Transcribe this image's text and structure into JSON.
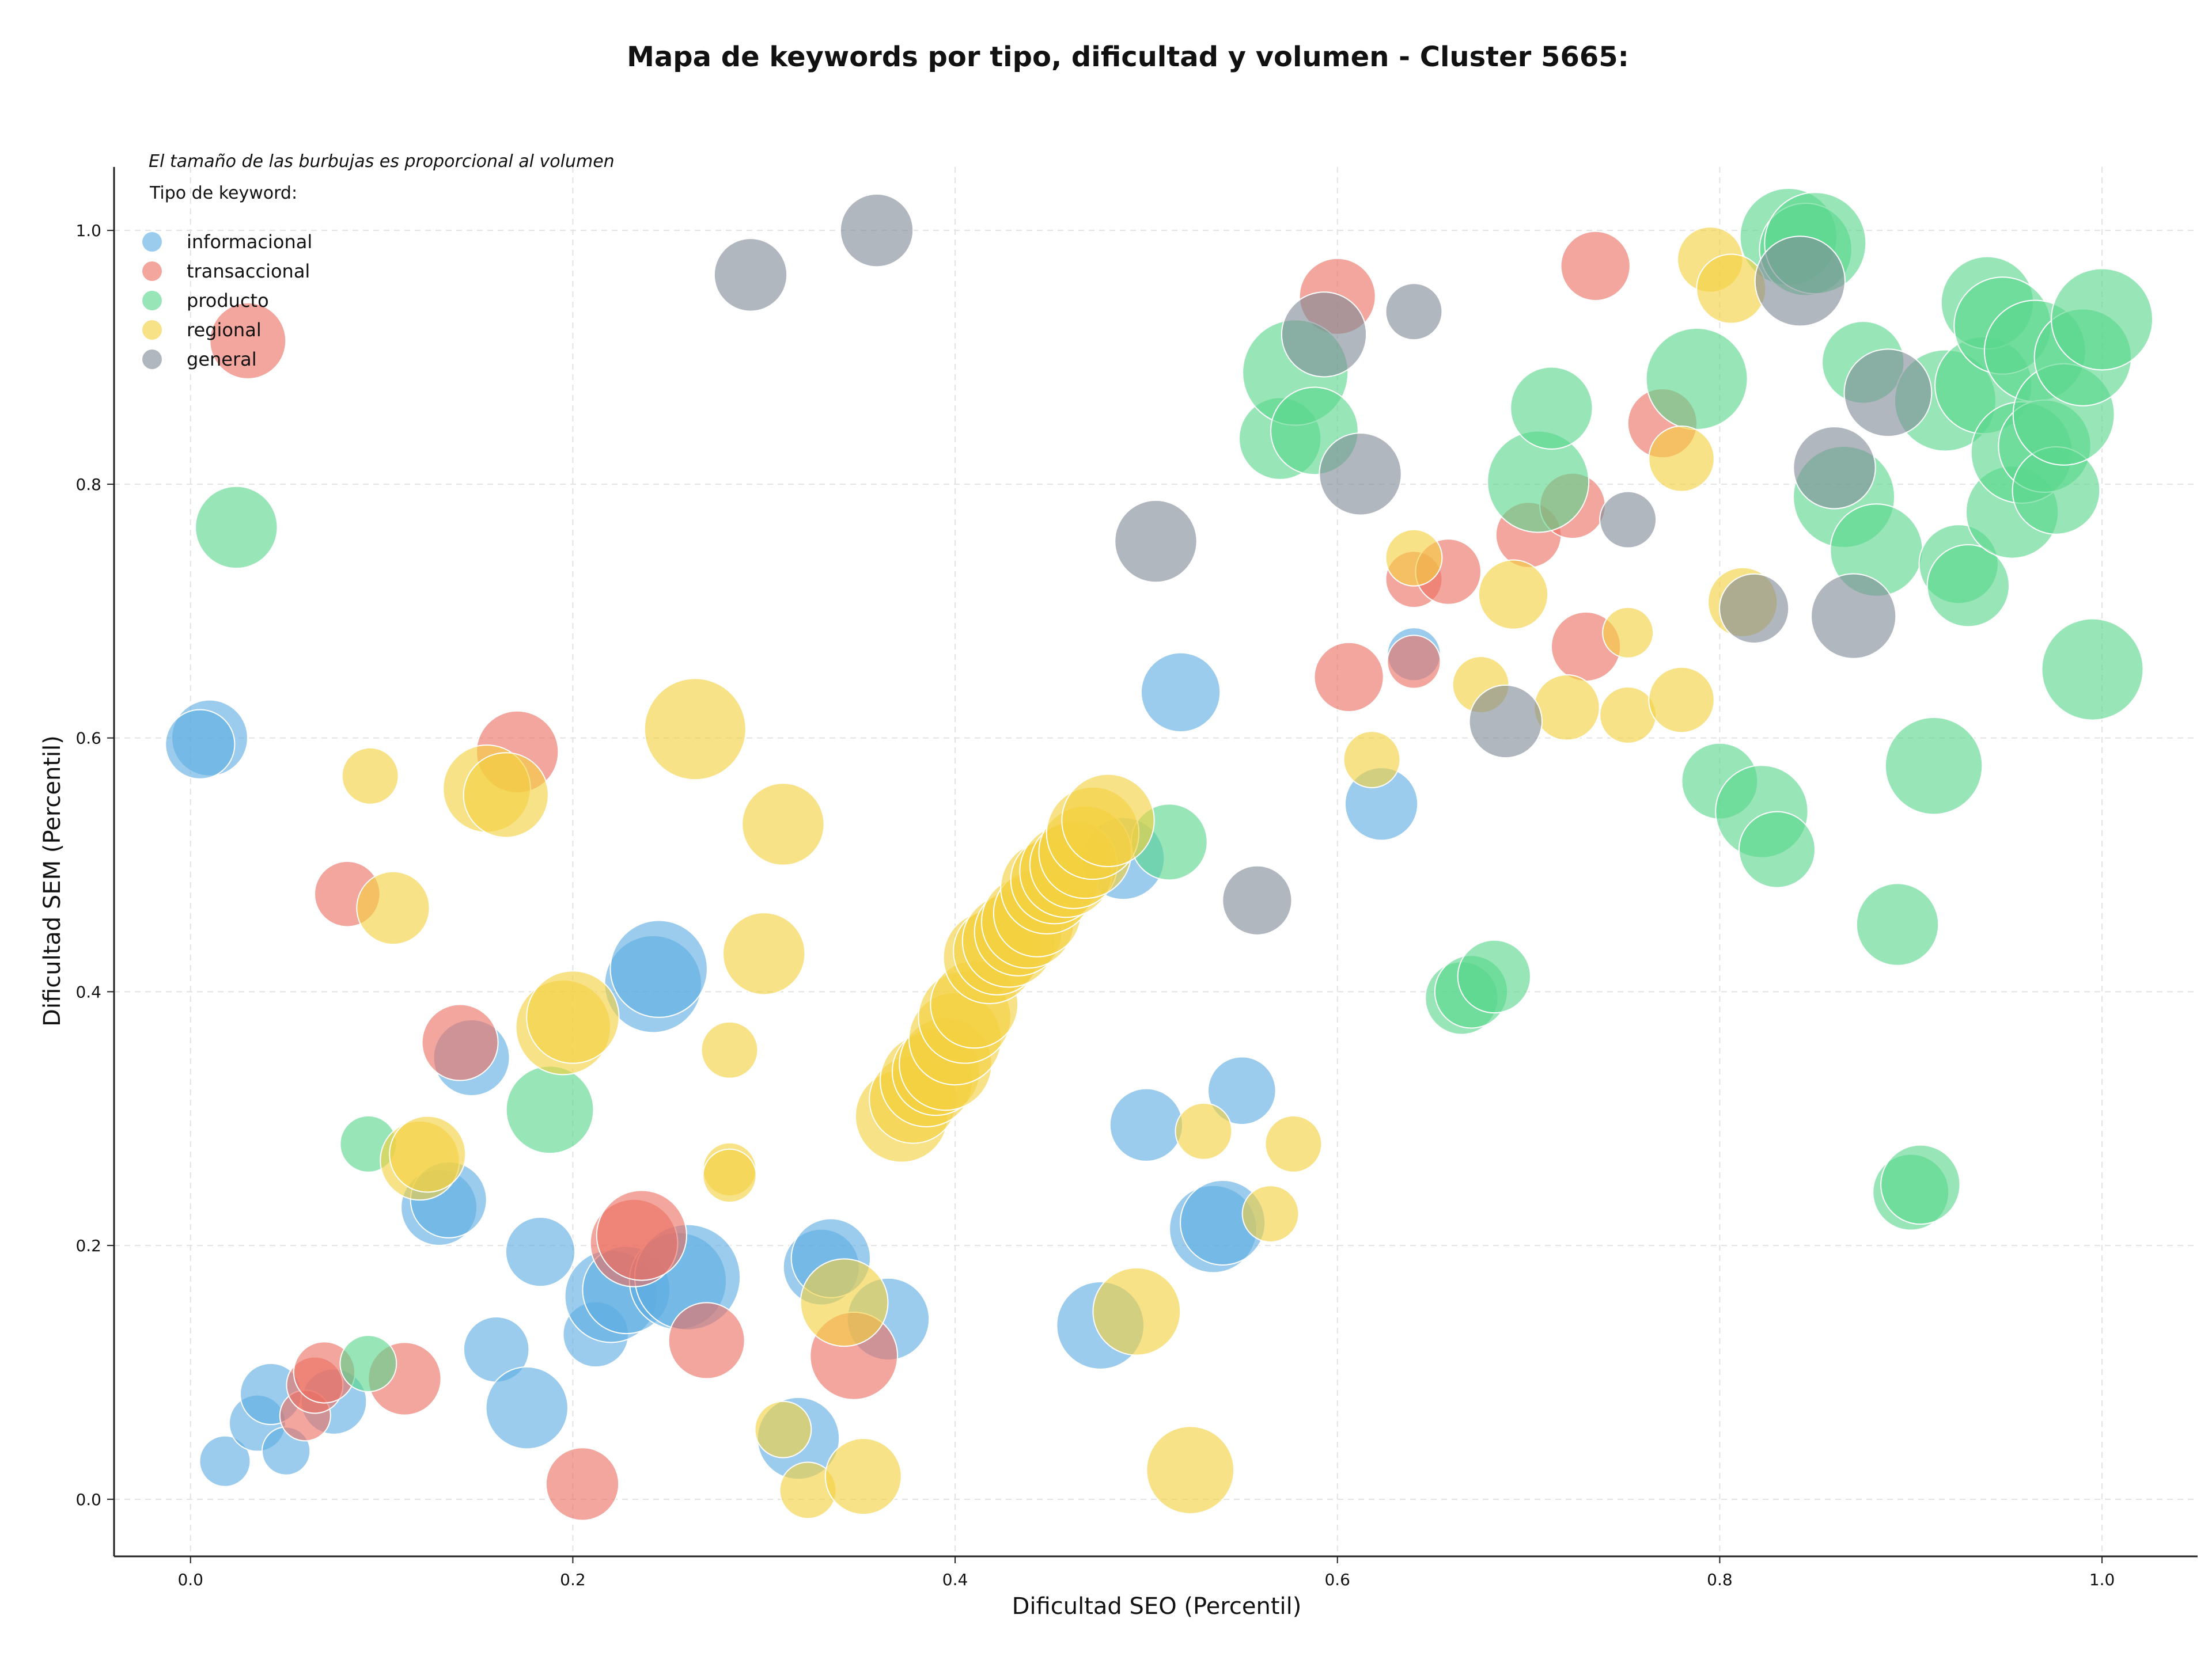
{
  "chart_data": {
    "type": "scatter",
    "title": "Mapa de keywords por tipo, dificultad y volumen - Cluster 5665:",
    "xlabel": "Dificultad SEO (Percentil)",
    "ylabel": "Dificultad SEM (Percentil)",
    "xlim": [
      -0.04,
      1.05
    ],
    "ylim": [
      -0.045,
      1.05
    ],
    "xticks": [
      "0.0",
      "0.2",
      "0.4",
      "0.6",
      "0.8",
      "1.0"
    ],
    "yticks": [
      "0.0",
      "0.2",
      "0.4",
      "0.6",
      "0.8",
      "1.0"
    ],
    "grid": true,
    "legend_placement": "upper-left",
    "legend_title": "Tipo de keyword:",
    "note": "El tamaño de las burbujas es proporcional al volumen",
    "series": [
      {
        "name": "informacional",
        "color": "#5DADE2",
        "points": [
          {
            "x": 0.01,
            "y": 0.6,
            "s": 4
          },
          {
            "x": 0.005,
            "y": 0.595,
            "s": 3
          },
          {
            "x": 0.018,
            "y": 0.03,
            "s": 1
          },
          {
            "x": 0.035,
            "y": 0.06,
            "s": 1.5
          },
          {
            "x": 0.042,
            "y": 0.083,
            "s": 2
          },
          {
            "x": 0.05,
            "y": 0.038,
            "s": 0.8
          },
          {
            "x": 0.075,
            "y": 0.077,
            "s": 2.5
          },
          {
            "x": 0.13,
            "y": 0.23,
            "s": 4
          },
          {
            "x": 0.135,
            "y": 0.236,
            "s": 4
          },
          {
            "x": 0.147,
            "y": 0.348,
            "s": 4
          },
          {
            "x": 0.16,
            "y": 0.118,
            "s": 2.5
          },
          {
            "x": 0.176,
            "y": 0.072,
            "s": 5
          },
          {
            "x": 0.183,
            "y": 0.195,
            "s": 3
          },
          {
            "x": 0.212,
            "y": 0.13,
            "s": 2.5
          },
          {
            "x": 0.22,
            "y": 0.16,
            "s": 7
          },
          {
            "x": 0.228,
            "y": 0.165,
            "s": 6
          },
          {
            "x": 0.242,
            "y": 0.406,
            "s": 8
          },
          {
            "x": 0.245,
            "y": 0.418,
            "s": 8
          },
          {
            "x": 0.255,
            "y": 0.172,
            "s": 8
          },
          {
            "x": 0.26,
            "y": 0.175,
            "s": 10
          },
          {
            "x": 0.318,
            "y": 0.048,
            "s": 5
          },
          {
            "x": 0.33,
            "y": 0.183,
            "s": 4
          },
          {
            "x": 0.335,
            "y": 0.19,
            "s": 4.5
          },
          {
            "x": 0.365,
            "y": 0.142,
            "s": 5
          },
          {
            "x": 0.476,
            "y": 0.137,
            "s": 6
          },
          {
            "x": 0.488,
            "y": 0.505,
            "s": 5
          },
          {
            "x": 0.5,
            "y": 0.295,
            "s": 3.5
          },
          {
            "x": 0.518,
            "y": 0.636,
            "s": 4.5
          },
          {
            "x": 0.535,
            "y": 0.213,
            "s": 6
          },
          {
            "x": 0.54,
            "y": 0.218,
            "s": 5.5
          },
          {
            "x": 0.55,
            "y": 0.322,
            "s": 2.8
          },
          {
            "x": 0.623,
            "y": 0.548,
            "s": 3.5
          },
          {
            "x": 0.64,
            "y": 0.666,
            "s": 1.2
          }
        ]
      },
      {
        "name": "transaccional",
        "color": "#EC7063",
        "points": [
          {
            "x": 0.03,
            "y": 0.913,
            "s": 4
          },
          {
            "x": 0.06,
            "y": 0.066,
            "s": 1
          },
          {
            "x": 0.065,
            "y": 0.09,
            "s": 1.5
          },
          {
            "x": 0.07,
            "y": 0.1,
            "s": 2
          },
          {
            "x": 0.082,
            "y": 0.477,
            "s": 2.5
          },
          {
            "x": 0.112,
            "y": 0.095,
            "s": 3.5
          },
          {
            "x": 0.141,
            "y": 0.36,
            "s": 4
          },
          {
            "x": 0.171,
            "y": 0.589,
            "s": 5
          },
          {
            "x": 0.205,
            "y": 0.012,
            "s": 3.5
          },
          {
            "x": 0.232,
            "y": 0.202,
            "s": 6
          },
          {
            "x": 0.236,
            "y": 0.208,
            "s": 6.5
          },
          {
            "x": 0.27,
            "y": 0.125,
            "s": 4
          },
          {
            "x": 0.347,
            "y": 0.113,
            "s": 6
          },
          {
            "x": 0.6,
            "y": 0.948,
            "s": 4
          },
          {
            "x": 0.606,
            "y": 0.648,
            "s": 3
          },
          {
            "x": 0.64,
            "y": 0.725,
            "s": 1.5
          },
          {
            "x": 0.64,
            "y": 0.66,
            "s": 1.2
          },
          {
            "x": 0.658,
            "y": 0.731,
            "s": 2.5
          },
          {
            "x": 0.7,
            "y": 0.76,
            "s": 2.5
          },
          {
            "x": 0.723,
            "y": 0.783,
            "s": 2.5
          },
          {
            "x": 0.73,
            "y": 0.672,
            "s": 3
          },
          {
            "x": 0.735,
            "y": 0.972,
            "s": 3
          },
          {
            "x": 0.77,
            "y": 0.848,
            "s": 3
          }
        ]
      },
      {
        "name": "producto",
        "color": "#58D68D",
        "points": [
          {
            "x": 0.024,
            "y": 0.766,
            "s": 5
          },
          {
            "x": 0.093,
            "y": 0.28,
            "s": 1.5
          },
          {
            "x": 0.093,
            "y": 0.107,
            "s": 1.5
          },
          {
            "x": 0.188,
            "y": 0.307,
            "s": 6
          },
          {
            "x": 0.512,
            "y": 0.518,
            "s": 4
          },
          {
            "x": 0.57,
            "y": 0.836,
            "s": 5
          },
          {
            "x": 0.578,
            "y": 0.888,
            "s": 10
          },
          {
            "x": 0.588,
            "y": 0.842,
            "s": 6
          },
          {
            "x": 0.665,
            "y": 0.395,
            "s": 3.5
          },
          {
            "x": 0.67,
            "y": 0.4,
            "s": 3.5
          },
          {
            "x": 0.682,
            "y": 0.412,
            "s": 3.5
          },
          {
            "x": 0.705,
            "y": 0.802,
            "s": 9
          },
          {
            "x": 0.712,
            "y": 0.86,
            "s": 5
          },
          {
            "x": 0.788,
            "y": 0.883,
            "s": 9
          },
          {
            "x": 0.8,
            "y": 0.566,
            "s": 4
          },
          {
            "x": 0.822,
            "y": 0.542,
            "s": 7
          },
          {
            "x": 0.83,
            "y": 0.512,
            "s": 4
          },
          {
            "x": 0.836,
            "y": 0.995,
            "s": 8
          },
          {
            "x": 0.845,
            "y": 0.985,
            "s": 7
          },
          {
            "x": 0.85,
            "y": 0.99,
            "s": 9
          },
          {
            "x": 0.865,
            "y": 0.79,
            "s": 9
          },
          {
            "x": 0.875,
            "y": 0.896,
            "s": 5
          },
          {
            "x": 0.882,
            "y": 0.748,
            "s": 7
          },
          {
            "x": 0.893,
            "y": 0.453,
            "s": 5
          },
          {
            "x": 0.9,
            "y": 0.242,
            "s": 4
          },
          {
            "x": 0.905,
            "y": 0.248,
            "s": 4.5
          },
          {
            "x": 0.912,
            "y": 0.578,
            "s": 8
          },
          {
            "x": 0.918,
            "y": 0.866,
            "s": 9
          },
          {
            "x": 0.925,
            "y": 0.737,
            "s": 4.5
          },
          {
            "x": 0.93,
            "y": 0.72,
            "s": 5
          },
          {
            "x": 0.938,
            "y": 0.878,
            "s": 8
          },
          {
            "x": 0.94,
            "y": 0.943,
            "s": 7
          },
          {
            "x": 0.948,
            "y": 0.925,
            "s": 8
          },
          {
            "x": 0.953,
            "y": 0.778,
            "s": 7
          },
          {
            "x": 0.958,
            "y": 0.825,
            "s": 9
          },
          {
            "x": 0.965,
            "y": 0.905,
            "s": 9
          },
          {
            "x": 0.97,
            "y": 0.83,
            "s": 7
          },
          {
            "x": 0.976,
            "y": 0.795,
            "s": 6
          },
          {
            "x": 0.98,
            "y": 0.855,
            "s": 9
          },
          {
            "x": 0.99,
            "y": 0.9,
            "s": 8
          },
          {
            "x": 0.995,
            "y": 0.654,
            "s": 9
          },
          {
            "x": 1.0,
            "y": 0.93,
            "s": 9
          }
        ]
      },
      {
        "name": "regional",
        "color": "#F4D03F",
        "points": [
          {
            "x": 0.094,
            "y": 0.57,
            "s": 1.5
          },
          {
            "x": 0.106,
            "y": 0.466,
            "s": 3.5
          },
          {
            "x": 0.12,
            "y": 0.267,
            "s": 4.5
          },
          {
            "x": 0.124,
            "y": 0.272,
            "s": 4
          },
          {
            "x": 0.155,
            "y": 0.56,
            "s": 6
          },
          {
            "x": 0.165,
            "y": 0.555,
            "s": 5.5
          },
          {
            "x": 0.195,
            "y": 0.372,
            "s": 7.5
          },
          {
            "x": 0.2,
            "y": 0.38,
            "s": 7
          },
          {
            "x": 0.264,
            "y": 0.607,
            "s": 9
          },
          {
            "x": 0.282,
            "y": 0.354,
            "s": 1.5
          },
          {
            "x": 0.282,
            "y": 0.26,
            "s": 1.2
          },
          {
            "x": 0.282,
            "y": 0.255,
            "s": 1.2
          },
          {
            "x": 0.3,
            "y": 0.43,
            "s": 5
          },
          {
            "x": 0.31,
            "y": 0.532,
            "s": 5
          },
          {
            "x": 0.31,
            "y": 0.055,
            "s": 1.5
          },
          {
            "x": 0.323,
            "y": 0.007,
            "s": 1.5
          },
          {
            "x": 0.342,
            "y": 0.155,
            "s": 6
          },
          {
            "x": 0.352,
            "y": 0.018,
            "s": 4
          },
          {
            "x": 0.372,
            "y": 0.302,
            "s": 7
          },
          {
            "x": 0.378,
            "y": 0.315,
            "s": 6
          },
          {
            "x": 0.385,
            "y": 0.33,
            "s": 7
          },
          {
            "x": 0.39,
            "y": 0.337,
            "s": 6
          },
          {
            "x": 0.395,
            "y": 0.343,
            "s": 7
          },
          {
            "x": 0.4,
            "y": 0.363,
            "s": 7
          },
          {
            "x": 0.405,
            "y": 0.38,
            "s": 7
          },
          {
            "x": 0.41,
            "y": 0.39,
            "s": 6
          },
          {
            "x": 0.418,
            "y": 0.427,
            "s": 7
          },
          {
            "x": 0.422,
            "y": 0.432,
            "s": 6
          },
          {
            "x": 0.428,
            "y": 0.44,
            "s": 7
          },
          {
            "x": 0.433,
            "y": 0.447,
            "s": 6
          },
          {
            "x": 0.438,
            "y": 0.455,
            "s": 7
          },
          {
            "x": 0.443,
            "y": 0.462,
            "s": 6
          },
          {
            "x": 0.448,
            "y": 0.482,
            "s": 7
          },
          {
            "x": 0.452,
            "y": 0.488,
            "s": 6
          },
          {
            "x": 0.458,
            "y": 0.495,
            "s": 7
          },
          {
            "x": 0.462,
            "y": 0.5,
            "s": 6
          },
          {
            "x": 0.468,
            "y": 0.51,
            "s": 7
          },
          {
            "x": 0.472,
            "y": 0.525,
            "s": 7
          },
          {
            "x": 0.48,
            "y": 0.535,
            "s": 7
          },
          {
            "x": 0.495,
            "y": 0.148,
            "s": 6
          },
          {
            "x": 0.523,
            "y": 0.023,
            "s": 6
          },
          {
            "x": 0.53,
            "y": 0.29,
            "s": 1.5
          },
          {
            "x": 0.565,
            "y": 0.225,
            "s": 1.5
          },
          {
            "x": 0.577,
            "y": 0.28,
            "s": 1.5
          },
          {
            "x": 0.618,
            "y": 0.583,
            "s": 1.5
          },
          {
            "x": 0.64,
            "y": 0.742,
            "s": 1.5
          },
          {
            "x": 0.675,
            "y": 0.642,
            "s": 1.5
          },
          {
            "x": 0.692,
            "y": 0.713,
            "s": 3
          },
          {
            "x": 0.72,
            "y": 0.624,
            "s": 2.5
          },
          {
            "x": 0.752,
            "y": 0.683,
            "s": 1
          },
          {
            "x": 0.752,
            "y": 0.618,
            "s": 1.5
          },
          {
            "x": 0.78,
            "y": 0.63,
            "s": 2.5
          },
          {
            "x": 0.78,
            "y": 0.82,
            "s": 2.5
          },
          {
            "x": 0.795,
            "y": 0.977,
            "s": 2.5
          },
          {
            "x": 0.806,
            "y": 0.954,
            "s": 3
          },
          {
            "x": 0.812,
            "y": 0.707,
            "s": 3
          }
        ]
      },
      {
        "name": "general",
        "color": "#808B96",
        "points": [
          {
            "x": 0.293,
            "y": 0.965,
            "s": 3.5
          },
          {
            "x": 0.359,
            "y": 1.0,
            "s": 3.5
          },
          {
            "x": 0.505,
            "y": 0.755,
            "s": 5
          },
          {
            "x": 0.558,
            "y": 0.472,
            "s": 3
          },
          {
            "x": 0.593,
            "y": 0.918,
            "s": 5.5
          },
          {
            "x": 0.612,
            "y": 0.808,
            "s": 5
          },
          {
            "x": 0.64,
            "y": 0.936,
            "s": 1.5
          },
          {
            "x": 0.688,
            "y": 0.613,
            "s": 3.5
          },
          {
            "x": 0.752,
            "y": 0.772,
            "s": 1.5
          },
          {
            "x": 0.818,
            "y": 0.702,
            "s": 3
          },
          {
            "x": 0.842,
            "y": 0.96,
            "s": 6.5
          },
          {
            "x": 0.86,
            "y": 0.813,
            "s": 5
          },
          {
            "x": 0.87,
            "y": 0.696,
            "s": 5.5
          },
          {
            "x": 0.888,
            "y": 0.872,
            "s": 6
          }
        ]
      }
    ]
  }
}
